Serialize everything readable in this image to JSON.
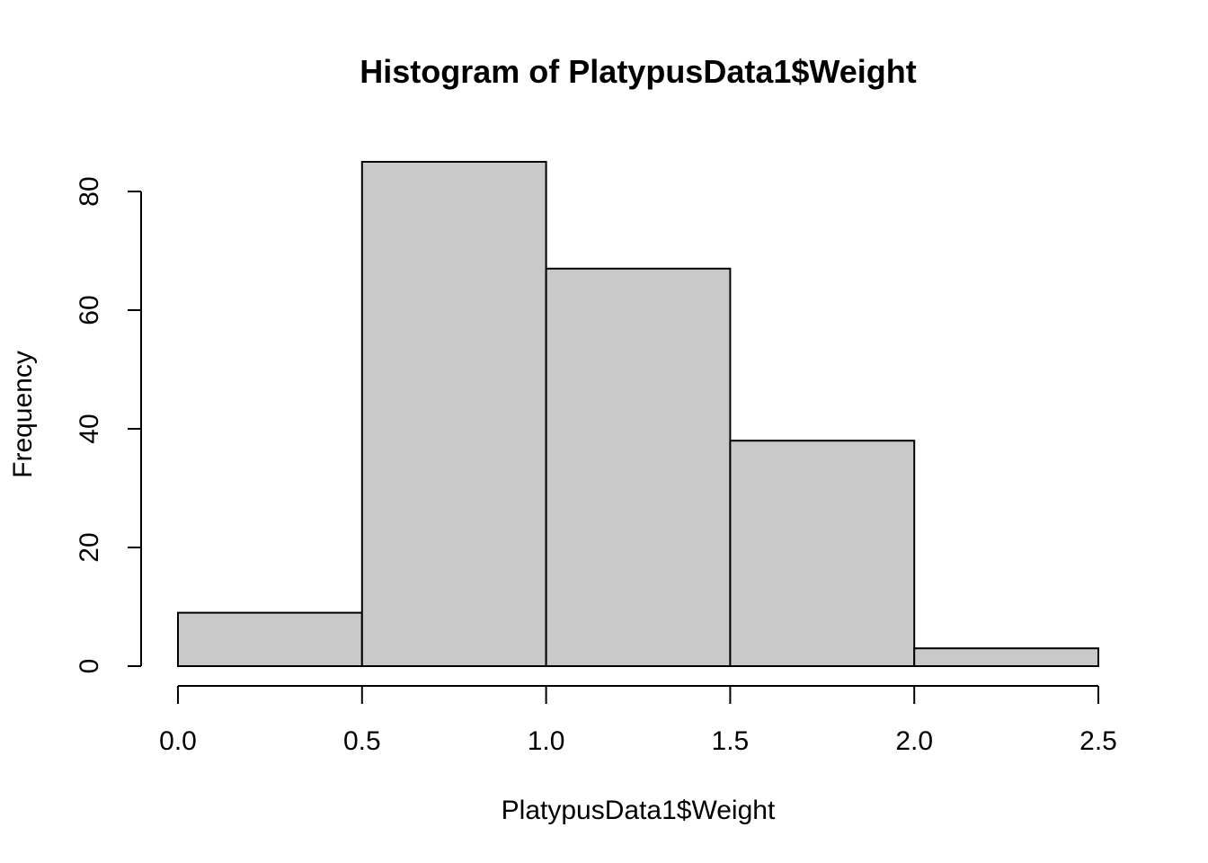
{
  "chart_data": {
    "type": "bar",
    "title": "Histogram of PlatypusData1$Weight",
    "xlabel": "PlatypusData1$Weight",
    "ylabel": "Frequency",
    "bins": [
      {
        "start": 0.0,
        "end": 0.5,
        "count": 9
      },
      {
        "start": 0.5,
        "end": 1.0,
        "count": 85
      },
      {
        "start": 1.0,
        "end": 1.5,
        "count": 67
      },
      {
        "start": 1.5,
        "end": 2.0,
        "count": 38
      },
      {
        "start": 2.0,
        "end": 2.5,
        "count": 3
      }
    ],
    "categories": [
      "0.0-0.5",
      "0.5-1.0",
      "1.0-1.5",
      "1.5-2.0",
      "2.0-2.5"
    ],
    "values": [
      9,
      85,
      67,
      38,
      3
    ],
    "xlim": [
      0.0,
      2.5
    ],
    "ylim": [
      0,
      85
    ],
    "x_ticks": [
      "0.0",
      "0.5",
      "1.0",
      "1.5",
      "2.0",
      "2.5"
    ],
    "y_ticks": [
      "0",
      "20",
      "40",
      "60",
      "80"
    ],
    "bar_color": "#c9c9c9",
    "edge_color": "#000000",
    "grid": false,
    "legend": "none"
  }
}
